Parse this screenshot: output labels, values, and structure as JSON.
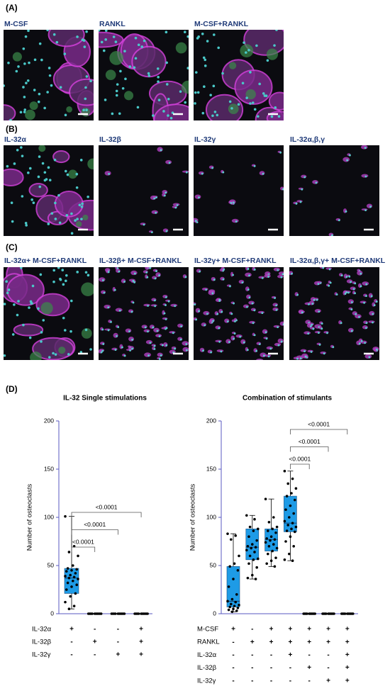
{
  "panels": [
    {
      "label": "(A)",
      "images": [
        {
          "title": "M-CSF"
        },
        {
          "title": "RANKL"
        },
        {
          "title": "M-CSF+RANKL"
        }
      ]
    },
    {
      "label": "(B)",
      "images": [
        {
          "title": "IL-32α"
        },
        {
          "title": "IL-32β"
        },
        {
          "title": "IL-32γ"
        },
        {
          "title": "IL-32α,β,γ"
        }
      ]
    },
    {
      "label": "(C)",
      "images": [
        {
          "title": "IL-32α+ M-CSF+RANKL"
        },
        {
          "title": "IL-32β+ M-CSF+RANKL"
        },
        {
          "title": "IL-32γ+ M-CSF+RANKL"
        },
        {
          "title": "IL-32α,β,γ+ M-CSF+RANKL"
        }
      ]
    }
  ],
  "panel_d_label": "(D)",
  "chart_data": [
    {
      "type": "box",
      "title": "IL-32 Single stimulations",
      "ylabel": "Number of osteoclasts",
      "ylim": [
        0,
        200
      ],
      "yticks": [
        0,
        50,
        100,
        150,
        200
      ],
      "color": "#1e9be6",
      "boxes": [
        {
          "min": 5,
          "q1": 21,
          "median": 37,
          "q3": 47,
          "max": 101,
          "points": [
            101,
            70,
            64,
            60,
            50,
            47,
            46,
            45,
            44,
            42,
            40,
            39,
            38,
            37,
            36,
            34,
            32,
            30,
            28,
            25,
            21,
            18,
            12,
            8,
            5
          ]
        },
        {
          "min": 0,
          "q1": 0,
          "median": 0,
          "q3": 0,
          "max": 0,
          "points": [
            0,
            0,
            0,
            0,
            0,
            0,
            0,
            0,
            0,
            0
          ]
        },
        {
          "min": 0,
          "q1": 0,
          "median": 0,
          "q3": 0,
          "max": 0,
          "points": [
            0,
            0,
            0,
            0,
            0,
            0,
            0,
            0,
            0,
            0
          ]
        },
        {
          "min": 0,
          "q1": 0,
          "median": 0,
          "q3": 0,
          "max": 0,
          "points": [
            0,
            0,
            0,
            0,
            0,
            0,
            0,
            0,
            0,
            0
          ]
        }
      ],
      "comparisons": [
        {
          "from": 0,
          "to": 1,
          "label": "<0.0001"
        },
        {
          "from": 0,
          "to": 2,
          "label": "<0.0001"
        },
        {
          "from": 0,
          "to": 3,
          "label": "<0.0001"
        }
      ],
      "conditions": [
        {
          "name": "IL-32α",
          "signs": [
            "+",
            "-",
            "-",
            "+"
          ]
        },
        {
          "name": "IL-32β",
          "signs": [
            "-",
            "+",
            "-",
            "+"
          ]
        },
        {
          "name": "IL-32γ",
          "signs": [
            "-",
            "-",
            "+",
            "+"
          ]
        }
      ]
    },
    {
      "type": "box",
      "title": "Combination of stimulants",
      "ylabel": "Number of osteoclasts",
      "ylim": [
        0,
        200
      ],
      "yticks": [
        0,
        50,
        100,
        150,
        200
      ],
      "color": "#1e9be6",
      "boxes": [
        {
          "min": 2,
          "q1": 7,
          "median": 13,
          "q3": 49,
          "max": 83,
          "points": [
            83,
            81,
            77,
            60,
            52,
            49,
            45,
            36,
            28,
            20,
            15,
            13,
            12,
            10,
            9,
            8,
            7,
            6,
            5,
            4,
            3,
            2
          ]
        },
        {
          "min": 36,
          "q1": 56,
          "median": 69,
          "q3": 88,
          "max": 102,
          "points": [
            102,
            98,
            90,
            88,
            86,
            80,
            76,
            72,
            70,
            69,
            68,
            66,
            64,
            60,
            57,
            56,
            52,
            48,
            40,
            37,
            36
          ]
        },
        {
          "min": 49,
          "q1": 65,
          "median": 77,
          "q3": 88,
          "max": 119,
          "points": [
            119,
            100,
            95,
            90,
            88,
            86,
            84,
            80,
            78,
            77,
            76,
            74,
            72,
            70,
            68,
            65,
            62,
            58,
            55,
            52,
            49
          ]
        },
        {
          "min": 55,
          "q1": 85,
          "median": 94,
          "q3": 122,
          "max": 148,
          "points": [
            148,
            140,
            135,
            130,
            125,
            122,
            118,
            112,
            108,
            104,
            100,
            96,
            94,
            92,
            90,
            88,
            86,
            85,
            80,
            75,
            70,
            62,
            56,
            55
          ]
        },
        {
          "min": 0,
          "q1": 0,
          "median": 0,
          "q3": 0,
          "max": 0,
          "points": [
            0,
            0,
            0,
            0,
            0,
            0,
            0,
            0,
            0,
            0
          ]
        },
        {
          "min": 0,
          "q1": 0,
          "median": 0,
          "q3": 0,
          "max": 0,
          "points": [
            0,
            0,
            0,
            0,
            0,
            0,
            0,
            0,
            0,
            0
          ]
        },
        {
          "min": 0,
          "q1": 0,
          "median": 0,
          "q3": 0,
          "max": 0,
          "points": [
            0,
            0,
            0,
            0,
            0,
            0,
            0,
            0,
            0,
            0
          ]
        }
      ],
      "comparisons": [
        {
          "from": 3,
          "to": 4,
          "label": "<0.0001"
        },
        {
          "from": 3,
          "to": 5,
          "label": "<0.0001"
        },
        {
          "from": 3,
          "to": 6,
          "label": "<0.0001"
        }
      ],
      "conditions": [
        {
          "name": "M-CSF",
          "signs": [
            "+",
            "-",
            "+",
            "+",
            "+",
            "+",
            "+"
          ]
        },
        {
          "name": "RANKL",
          "signs": [
            "-",
            "+",
            "+",
            "+",
            "+",
            "+",
            "+"
          ]
        },
        {
          "name": "IL-32α",
          "signs": [
            "-",
            "-",
            "-",
            "+",
            "-",
            "-",
            "+"
          ]
        },
        {
          "name": "IL-32β",
          "signs": [
            "-",
            "-",
            "-",
            "-",
            "+",
            "-",
            "+"
          ]
        },
        {
          "name": "IL-32γ",
          "signs": [
            "-",
            "-",
            "-",
            "-",
            "-",
            "+",
            "+"
          ]
        }
      ]
    }
  ]
}
